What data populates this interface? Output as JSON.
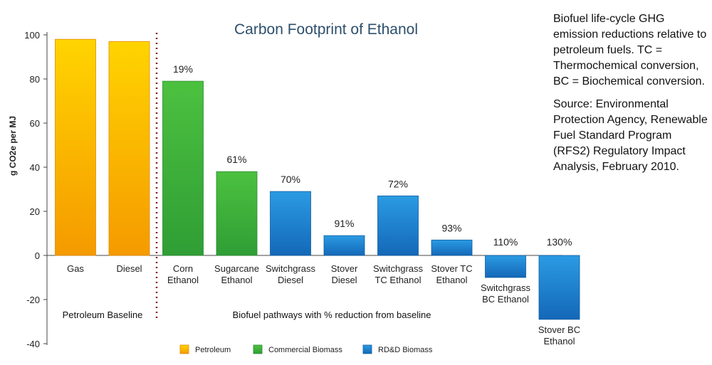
{
  "chart_data": {
    "type": "bar",
    "title": "Carbon Footprint of Ethanol",
    "ylabel": "g CO2e per MJ",
    "ylim": [
      -40,
      100
    ],
    "yticks": [
      -40,
      -20,
      0,
      20,
      40,
      60,
      80,
      100
    ],
    "categories": [
      [
        "Gas"
      ],
      [
        "Diesel"
      ],
      [
        "Corn",
        "Ethanol"
      ],
      [
        "Sugarcane",
        "Ethanol"
      ],
      [
        "Switchgrass",
        "Diesel"
      ],
      [
        "Stover",
        "Diesel"
      ],
      [
        "Switchgrass",
        "TC Ethanol"
      ],
      [
        "Stover TC",
        "Ethanol"
      ],
      [
        "Switchgrass",
        "BC Ethanol"
      ],
      [
        "Stover BC",
        "Ethanol"
      ]
    ],
    "values": [
      98,
      97,
      79,
      38,
      29,
      9,
      27,
      7,
      -10,
      -29
    ],
    "reduction_labels": [
      "",
      "",
      "19%",
      "61%",
      "70%",
      "91%",
      "72%",
      "93%",
      "110%",
      "130%"
    ],
    "groups": [
      "Petroleum",
      "Petroleum",
      "Commercial Biomass",
      "Commercial Biomass",
      "RD&D Biomass",
      "RD&D Biomass",
      "RD&D Biomass",
      "RD&D Biomass",
      "RD&D Biomass",
      "RD&D Biomass"
    ],
    "legend": [
      {
        "name": "Petroleum",
        "color": "#f7b500"
      },
      {
        "name": "Commercial Biomass",
        "color": "#3fb03f"
      },
      {
        "name": "RD&D Biomass",
        "color": "#1c86d4"
      }
    ],
    "section_labels": [
      "Petroleum Baseline",
      "Biofuel pathways with % reduction from baseline"
    ],
    "grid": false
  },
  "note": {
    "p1": "Biofuel life-cycle GHG emission reductions relative to petroleum fuels. TC = Thermochemical conversion, BC = Biochemical conversion.",
    "p2": "Source: Environmental Protection Agency, Renewable Fuel Standard Program (RFS2) Regulatory Impact Analysis, February 2010."
  }
}
